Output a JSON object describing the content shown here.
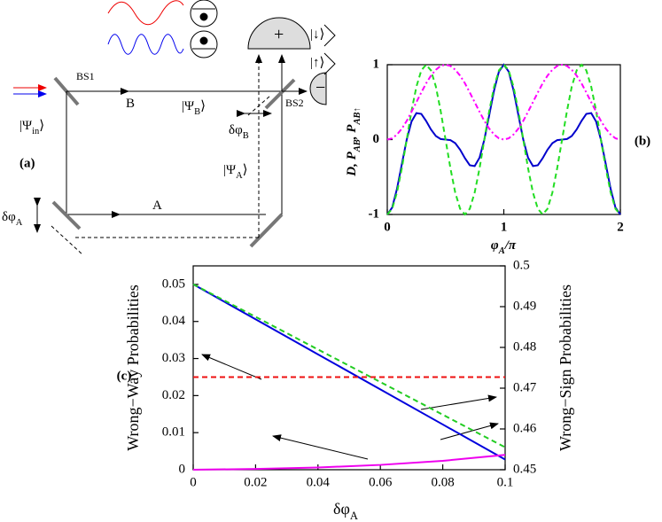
{
  "diagram": {
    "label": "(a)",
    "labels": [
      [
        {
          "t": "BS1"
        }
      ],
      [
        {
          "t": "B"
        }
      ],
      [
        {
          "t": "|Ψ"
        },
        {
          "s": "B"
        },
        {
          "t": "⟩"
        }
      ],
      [
        {
          "t": "BS2"
        }
      ],
      [
        {
          "t": "δφ"
        },
        {
          "s": "B"
        }
      ],
      [
        {
          "t": "|Ψ"
        },
        {
          "s": "A"
        },
        {
          "t": "⟩"
        }
      ],
      [
        {
          "t": "A"
        }
      ],
      [
        {
          "t": "δφ"
        },
        {
          "s": "A"
        }
      ],
      [
        {
          "t": "|Ψ"
        },
        {
          "s": "in"
        },
        {
          "t": "⟩"
        }
      ],
      [
        {
          "t": "+"
        }
      ],
      [
        {
          "t": "−"
        }
      ],
      [
        {
          "t": "|↓⟩"
        }
      ],
      [
        {
          "t": "|↑⟩"
        }
      ]
    ]
  },
  "chart_data": [
    {
      "type": "line",
      "label": "(b)",
      "xlabel": [
        {
          "t": "φ"
        },
        {
          "s": "A"
        },
        {
          "t": "/π"
        }
      ],
      "ylabel": [
        {
          "t": "D, P"
        },
        {
          "s": "AB"
        },
        {
          "t": ", P"
        },
        {
          "s": "AB↑"
        }
      ],
      "x": [
        0,
        0.042,
        0.083,
        0.125,
        0.167,
        0.208,
        0.25,
        0.292,
        0.333,
        0.375,
        0.417,
        0.458,
        0.5,
        0.542,
        0.583,
        0.625,
        0.667,
        0.708,
        0.75,
        0.792,
        0.833,
        0.875,
        0.917,
        0.958,
        1,
        1.042,
        1.083,
        1.125,
        1.167,
        1.208,
        1.25,
        1.292,
        1.333,
        1.375,
        1.417,
        1.458,
        1.5,
        1.542,
        1.583,
        1.625,
        1.667,
        1.708,
        1.75,
        1.792,
        1.833,
        1.875,
        1.917,
        1.958,
        2
      ],
      "xlim": [
        0,
        2
      ],
      "ylim": [
        -1,
        1
      ],
      "xticks": [
        0,
        1,
        2
      ],
      "yticks": [
        -1,
        0,
        1
      ],
      "series": [
        {
          "color": "#0000cc",
          "style": "solid",
          "values": [
            -1,
            -0.908,
            -0.66,
            -0.327,
            0,
            0.241,
            0.354,
            0.343,
            0.25,
            0.135,
            0.047,
            0.007,
            0,
            -0.007,
            -0.047,
            -0.135,
            -0.25,
            -0.343,
            -0.354,
            -0.241,
            0,
            0.327,
            0.66,
            0.908,
            1,
            0.908,
            0.66,
            0.327,
            0,
            -0.241,
            -0.354,
            -0.343,
            -0.25,
            -0.135,
            -0.047,
            -0.007,
            0,
            0.007,
            0.047,
            0.135,
            0.25,
            0.343,
            0.354,
            0.241,
            0,
            -0.327,
            -0.66,
            -0.908,
            -1
          ]
        },
        {
          "color": "#22dd22",
          "style": "dashed",
          "values": [
            -1,
            -0.924,
            -0.707,
            -0.383,
            0,
            0.383,
            0.707,
            0.924,
            1,
            0.924,
            0.707,
            0.383,
            0,
            -0.383,
            -0.707,
            -0.924,
            -1,
            -0.924,
            -0.707,
            -0.383,
            0,
            0.383,
            0.707,
            0.924,
            1,
            0.924,
            0.707,
            0.383,
            0,
            -0.383,
            -0.707,
            -0.924,
            -1,
            -0.924,
            -0.707,
            -0.383,
            0,
            0.383,
            0.707,
            0.924,
            1,
            0.924,
            0.707,
            0.383,
            0,
            -0.383,
            -0.707,
            -0.924,
            -1
          ]
        },
        {
          "color": "#ff00ff",
          "style": "dashdot",
          "values": [
            0,
            0.017,
            0.067,
            0.146,
            0.25,
            0.371,
            0.5,
            0.629,
            0.75,
            0.854,
            0.933,
            0.983,
            1,
            0.983,
            0.933,
            0.854,
            0.75,
            0.629,
            0.5,
            0.371,
            0.25,
            0.146,
            0.067,
            0.017,
            0,
            0.017,
            0.067,
            0.146,
            0.25,
            0.371,
            0.5,
            0.629,
            0.75,
            0.854,
            0.933,
            0.983,
            1,
            0.983,
            0.933,
            0.854,
            0.75,
            0.629,
            0.5,
            0.371,
            0.25,
            0.146,
            0.067,
            0.017,
            0
          ]
        }
      ]
    },
    {
      "type": "line",
      "label": "(c)",
      "xlabel": [
        {
          "t": "δφ"
        },
        {
          "s": "A"
        }
      ],
      "ylabel": [
        {
          "t": "Wrong−Way Probabilities"
        }
      ],
      "y2label": [
        {
          "t": "Wrong−Sign Probabilities"
        }
      ],
      "x": [
        0,
        0.02,
        0.04,
        0.06,
        0.08,
        0.1
      ],
      "xlim": [
        0,
        0.1
      ],
      "ylim": [
        0,
        0.055
      ],
      "y2lim": [
        0.45,
        0.5
      ],
      "xticks": [
        0,
        0.02,
        0.04,
        0.06,
        0.08,
        0.1
      ],
      "yticks": [
        0,
        0.01,
        0.02,
        0.03,
        0.04,
        0.05
      ],
      "y2ticks": [
        0.45,
        0.46,
        0.47,
        0.48,
        0.49,
        0.5
      ],
      "series": [
        {
          "color": "#0000dd",
          "style": "solid",
          "axis": "y2",
          "values": [
            0.4955,
            0.4869,
            0.4783,
            0.4697,
            0.4611,
            0.4525
          ]
        },
        {
          "color": "#22cc22",
          "style": "dashed",
          "axis": "y2",
          "values": [
            0.4955,
            0.4875,
            0.4795,
            0.4715,
            0.4635,
            0.4555
          ]
        },
        {
          "color": "#ee1111",
          "style": "dashed",
          "axis": "y",
          "values": [
            0.025,
            0.025,
            0.025,
            0.025,
            0.025,
            0.025
          ]
        },
        {
          "color": "#ee00ee",
          "style": "solid",
          "axis": "y",
          "values": [
            0,
            0.0002,
            0.0006,
            0.0013,
            0.0024,
            0.004
          ]
        }
      ]
    }
  ]
}
